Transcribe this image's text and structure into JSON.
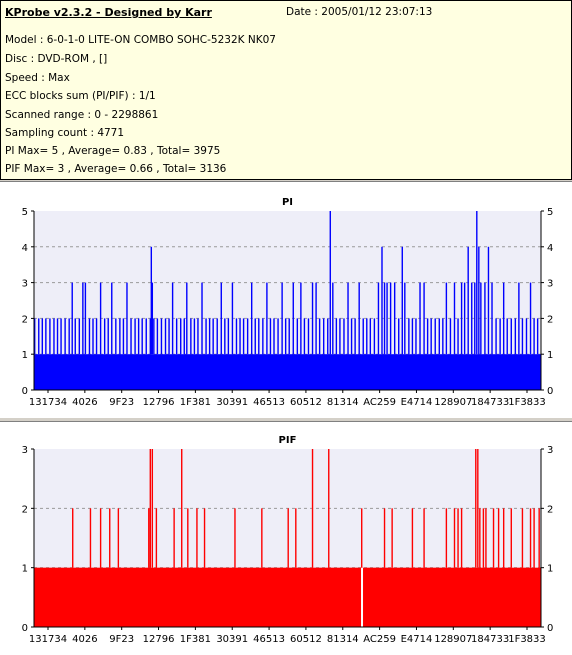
{
  "header": {
    "app_title": "KProbe v2.3.2 - Designed by Karr",
    "date": "Date : 2005/01/12 23:07:13",
    "lines": [
      "Model : 6-0-1-0 LITE-ON COMBO SOHC-5232K NK07",
      "Disc : DVD-ROM ,  []",
      "Speed : Max",
      "ECC blocks sum (PI/PIF) : 1/1",
      "Scanned range : 0 - 2298861",
      "Sampling count : 4771",
      "PI Max= 5 , Average= 0.83 , Total= 3975",
      "PIF Max= 3 , Average= 0.66 , Total= 3136"
    ]
  },
  "colors": {
    "pi": "#0000ff",
    "pif": "#ff0000",
    "plot_bg": "#eeeef8",
    "grid": "#9a9a9a"
  },
  "chart_data": [
    {
      "type": "bar",
      "title": "PI",
      "ylim": [
        0,
        5
      ],
      "yticks": [
        0,
        1,
        2,
        3,
        4,
        5
      ],
      "grid": true,
      "x_tick_labels": [
        "131734",
        "4026",
        "9F23",
        "12796",
        "1F381",
        "30391",
        "46513",
        "60512",
        "81314",
        "AC259",
        "E4714",
        "128907",
        "184733",
        "1F3833"
      ],
      "baseline": 1,
      "sample_count": 4771,
      "spikes": [
        {
          "pos": 0.0,
          "v": 2
        },
        {
          "pos": 0.008,
          "v": 2
        },
        {
          "pos": 0.015,
          "v": 2
        },
        {
          "pos": 0.022,
          "v": 2
        },
        {
          "pos": 0.03,
          "v": 2
        },
        {
          "pos": 0.038,
          "v": 2
        },
        {
          "pos": 0.045,
          "v": 2
        },
        {
          "pos": 0.052,
          "v": 2
        },
        {
          "pos": 0.06,
          "v": 2
        },
        {
          "pos": 0.068,
          "v": 2
        },
        {
          "pos": 0.074,
          "v": 3
        },
        {
          "pos": 0.08,
          "v": 2
        },
        {
          "pos": 0.088,
          "v": 2
        },
        {
          "pos": 0.095,
          "v": 3
        },
        {
          "pos": 0.1,
          "v": 3
        },
        {
          "pos": 0.108,
          "v": 2
        },
        {
          "pos": 0.115,
          "v": 2
        },
        {
          "pos": 0.122,
          "v": 2
        },
        {
          "pos": 0.13,
          "v": 3
        },
        {
          "pos": 0.138,
          "v": 2
        },
        {
          "pos": 0.145,
          "v": 2
        },
        {
          "pos": 0.152,
          "v": 3
        },
        {
          "pos": 0.16,
          "v": 2
        },
        {
          "pos": 0.168,
          "v": 2
        },
        {
          "pos": 0.175,
          "v": 2
        },
        {
          "pos": 0.182,
          "v": 3
        },
        {
          "pos": 0.19,
          "v": 2
        },
        {
          "pos": 0.198,
          "v": 2
        },
        {
          "pos": 0.205,
          "v": 2
        },
        {
          "pos": 0.212,
          "v": 2
        },
        {
          "pos": 0.22,
          "v": 2
        },
        {
          "pos": 0.228,
          "v": 2
        },
        {
          "pos": 0.235,
          "v": 2
        },
        {
          "pos": 0.23,
          "v": 4
        },
        {
          "pos": 0.232,
          "v": 3
        },
        {
          "pos": 0.242,
          "v": 2
        },
        {
          "pos": 0.25,
          "v": 2
        },
        {
          "pos": 0.258,
          "v": 2
        },
        {
          "pos": 0.265,
          "v": 2
        },
        {
          "pos": 0.272,
          "v": 3
        },
        {
          "pos": 0.28,
          "v": 2
        },
        {
          "pos": 0.288,
          "v": 2
        },
        {
          "pos": 0.295,
          "v": 2
        },
        {
          "pos": 0.3,
          "v": 3
        },
        {
          "pos": 0.308,
          "v": 2
        },
        {
          "pos": 0.315,
          "v": 2
        },
        {
          "pos": 0.322,
          "v": 2
        },
        {
          "pos": 0.33,
          "v": 3
        },
        {
          "pos": 0.338,
          "v": 2
        },
        {
          "pos": 0.345,
          "v": 2
        },
        {
          "pos": 0.352,
          "v": 2
        },
        {
          "pos": 0.36,
          "v": 2
        },
        {
          "pos": 0.368,
          "v": 3
        },
        {
          "pos": 0.375,
          "v": 2
        },
        {
          "pos": 0.382,
          "v": 2
        },
        {
          "pos": 0.39,
          "v": 3
        },
        {
          "pos": 0.398,
          "v": 2
        },
        {
          "pos": 0.405,
          "v": 2
        },
        {
          "pos": 0.412,
          "v": 2
        },
        {
          "pos": 0.42,
          "v": 2
        },
        {
          "pos": 0.428,
          "v": 3
        },
        {
          "pos": 0.435,
          "v": 2
        },
        {
          "pos": 0.442,
          "v": 2
        },
        {
          "pos": 0.45,
          "v": 2
        },
        {
          "pos": 0.458,
          "v": 3
        },
        {
          "pos": 0.465,
          "v": 2
        },
        {
          "pos": 0.472,
          "v": 2
        },
        {
          "pos": 0.48,
          "v": 2
        },
        {
          "pos": 0.488,
          "v": 3
        },
        {
          "pos": 0.495,
          "v": 2
        },
        {
          "pos": 0.502,
          "v": 2
        },
        {
          "pos": 0.51,
          "v": 3
        },
        {
          "pos": 0.518,
          "v": 2
        },
        {
          "pos": 0.525,
          "v": 3
        },
        {
          "pos": 0.532,
          "v": 2
        },
        {
          "pos": 0.54,
          "v": 2
        },
        {
          "pos": 0.548,
          "v": 3
        },
        {
          "pos": 0.555,
          "v": 3
        },
        {
          "pos": 0.562,
          "v": 2
        },
        {
          "pos": 0.57,
          "v": 2
        },
        {
          "pos": 0.578,
          "v": 2
        },
        {
          "pos": 0.583,
          "v": 5
        },
        {
          "pos": 0.588,
          "v": 3
        },
        {
          "pos": 0.595,
          "v": 2
        },
        {
          "pos": 0.602,
          "v": 2
        },
        {
          "pos": 0.61,
          "v": 2
        },
        {
          "pos": 0.618,
          "v": 3
        },
        {
          "pos": 0.625,
          "v": 2
        },
        {
          "pos": 0.632,
          "v": 2
        },
        {
          "pos": 0.64,
          "v": 3
        },
        {
          "pos": 0.648,
          "v": 2
        },
        {
          "pos": 0.655,
          "v": 2
        },
        {
          "pos": 0.662,
          "v": 2
        },
        {
          "pos": 0.67,
          "v": 2
        },
        {
          "pos": 0.678,
          "v": 3
        },
        {
          "pos": 0.685,
          "v": 4
        },
        {
          "pos": 0.69,
          "v": 3
        },
        {
          "pos": 0.695,
          "v": 3
        },
        {
          "pos": 0.702,
          "v": 3
        },
        {
          "pos": 0.71,
          "v": 3
        },
        {
          "pos": 0.718,
          "v": 2
        },
        {
          "pos": 0.725,
          "v": 4
        },
        {
          "pos": 0.73,
          "v": 3
        },
        {
          "pos": 0.738,
          "v": 2
        },
        {
          "pos": 0.745,
          "v": 2
        },
        {
          "pos": 0.752,
          "v": 2
        },
        {
          "pos": 0.76,
          "v": 3
        },
        {
          "pos": 0.768,
          "v": 3
        },
        {
          "pos": 0.775,
          "v": 2
        },
        {
          "pos": 0.782,
          "v": 2
        },
        {
          "pos": 0.79,
          "v": 2
        },
        {
          "pos": 0.798,
          "v": 2
        },
        {
          "pos": 0.805,
          "v": 2
        },
        {
          "pos": 0.812,
          "v": 3
        },
        {
          "pos": 0.82,
          "v": 2
        },
        {
          "pos": 0.828,
          "v": 3
        },
        {
          "pos": 0.835,
          "v": 2
        },
        {
          "pos": 0.842,
          "v": 3
        },
        {
          "pos": 0.848,
          "v": 3
        },
        {
          "pos": 0.855,
          "v": 4
        },
        {
          "pos": 0.862,
          "v": 3
        },
        {
          "pos": 0.868,
          "v": 3
        },
        {
          "pos": 0.872,
          "v": 5
        },
        {
          "pos": 0.876,
          "v": 4
        },
        {
          "pos": 0.88,
          "v": 3
        },
        {
          "pos": 0.888,
          "v": 3
        },
        {
          "pos": 0.895,
          "v": 4
        },
        {
          "pos": 0.902,
          "v": 3
        },
        {
          "pos": 0.91,
          "v": 2
        },
        {
          "pos": 0.918,
          "v": 2
        },
        {
          "pos": 0.925,
          "v": 3
        },
        {
          "pos": 0.932,
          "v": 2
        },
        {
          "pos": 0.94,
          "v": 2
        },
        {
          "pos": 0.948,
          "v": 2
        },
        {
          "pos": 0.955,
          "v": 3
        },
        {
          "pos": 0.962,
          "v": 2
        },
        {
          "pos": 0.97,
          "v": 2
        },
        {
          "pos": 0.978,
          "v": 3
        },
        {
          "pos": 0.985,
          "v": 2
        },
        {
          "pos": 0.992,
          "v": 2
        }
      ]
    },
    {
      "type": "bar",
      "title": "PIF",
      "ylim": [
        0,
        3
      ],
      "yticks": [
        0,
        1,
        2,
        3
      ],
      "grid": true,
      "x_tick_labels": [
        "131734",
        "4026",
        "9F23",
        "12796",
        "1F381",
        "30391",
        "46513",
        "60512",
        "81314",
        "AC259",
        "E4714",
        "128907",
        "184733",
        "1F3833"
      ],
      "baseline": 1,
      "gap": {
        "pos": 0.645,
        "v": 0
      },
      "spikes": [
        {
          "pos": 0.075,
          "v": 2
        },
        {
          "pos": 0.11,
          "v": 2
        },
        {
          "pos": 0.13,
          "v": 2
        },
        {
          "pos": 0.148,
          "v": 2
        },
        {
          "pos": 0.165,
          "v": 2
        },
        {
          "pos": 0.225,
          "v": 2
        },
        {
          "pos": 0.228,
          "v": 3
        },
        {
          "pos": 0.232,
          "v": 3
        },
        {
          "pos": 0.24,
          "v": 2
        },
        {
          "pos": 0.275,
          "v": 2
        },
        {
          "pos": 0.29,
          "v": 3
        },
        {
          "pos": 0.302,
          "v": 2
        },
        {
          "pos": 0.32,
          "v": 2
        },
        {
          "pos": 0.335,
          "v": 2
        },
        {
          "pos": 0.395,
          "v": 2
        },
        {
          "pos": 0.448,
          "v": 2
        },
        {
          "pos": 0.5,
          "v": 2
        },
        {
          "pos": 0.515,
          "v": 2
        },
        {
          "pos": 0.548,
          "v": 3
        },
        {
          "pos": 0.58,
          "v": 3
        },
        {
          "pos": 0.645,
          "v": 2
        },
        {
          "pos": 0.69,
          "v": 2
        },
        {
          "pos": 0.705,
          "v": 2
        },
        {
          "pos": 0.745,
          "v": 2
        },
        {
          "pos": 0.768,
          "v": 2
        },
        {
          "pos": 0.812,
          "v": 2
        },
        {
          "pos": 0.828,
          "v": 2
        },
        {
          "pos": 0.835,
          "v": 2
        },
        {
          "pos": 0.842,
          "v": 2
        },
        {
          "pos": 0.87,
          "v": 3
        },
        {
          "pos": 0.874,
          "v": 3
        },
        {
          "pos": 0.878,
          "v": 2
        },
        {
          "pos": 0.885,
          "v": 2
        },
        {
          "pos": 0.89,
          "v": 2
        },
        {
          "pos": 0.905,
          "v": 2
        },
        {
          "pos": 0.915,
          "v": 2
        },
        {
          "pos": 0.925,
          "v": 2
        },
        {
          "pos": 0.94,
          "v": 2
        },
        {
          "pos": 0.962,
          "v": 2
        },
        {
          "pos": 0.978,
          "v": 2
        },
        {
          "pos": 0.985,
          "v": 2
        },
        {
          "pos": 0.995,
          "v": 2
        }
      ]
    }
  ]
}
